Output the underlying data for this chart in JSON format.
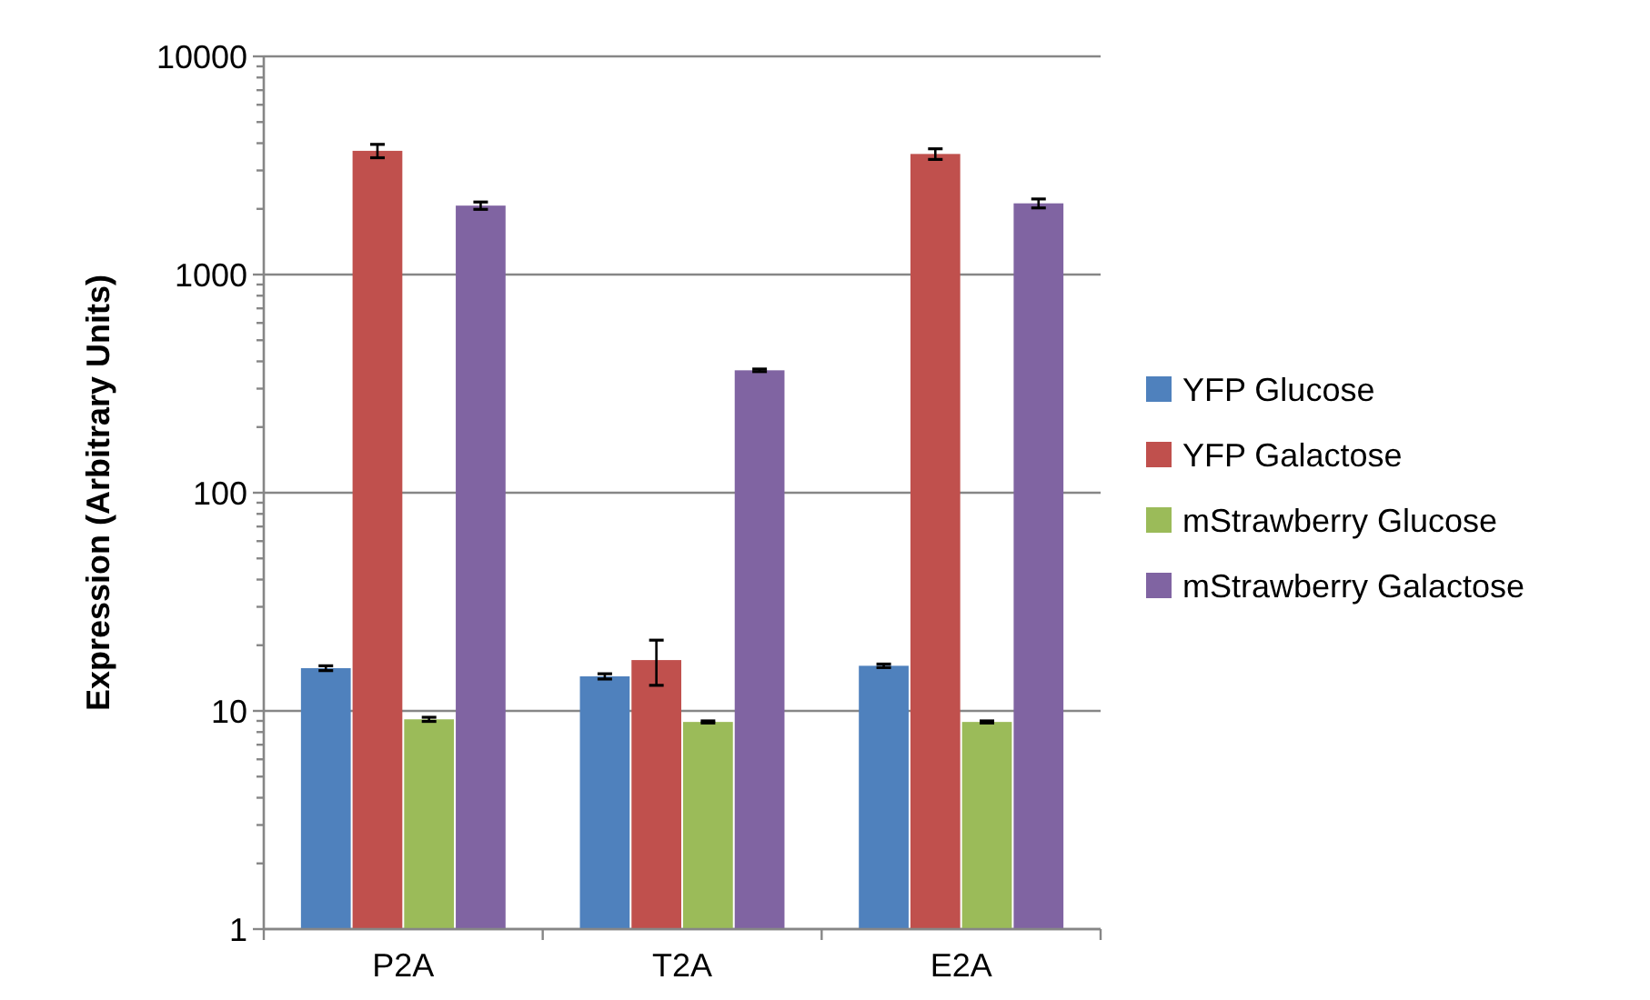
{
  "chart_data": {
    "type": "bar",
    "ylabel": "Expression (Arbitrary Units)",
    "categories": [
      "P2A",
      "T2A",
      "E2A"
    ],
    "log": true,
    "ylim": [
      1,
      10000
    ],
    "yticks": [
      1,
      {
        "value": 2,
        "label": null
      },
      {
        "value": 3,
        "label": null
      },
      {
        "value": 4,
        "label": null
      },
      {
        "value": 5,
        "label": null
      },
      {
        "value": 6,
        "label": null
      },
      {
        "value": 7,
        "label": null
      },
      {
        "value": 8,
        "label": null
      },
      {
        "value": 9,
        "label": null
      },
      10,
      {
        "value": 20,
        "label": null
      },
      {
        "value": 30,
        "label": null
      },
      {
        "value": 40,
        "label": null
      },
      {
        "value": 50,
        "label": null
      },
      {
        "value": 60,
        "label": null
      },
      {
        "value": 70,
        "label": null
      },
      {
        "value": 80,
        "label": null
      },
      {
        "value": 90,
        "label": null
      },
      100,
      {
        "value": 200,
        "label": null
      },
      {
        "value": 300,
        "label": null
      },
      {
        "value": 400,
        "label": null
      },
      {
        "value": 500,
        "label": null
      },
      {
        "value": 600,
        "label": null
      },
      {
        "value": 700,
        "label": null
      },
      {
        "value": 800,
        "label": null
      },
      {
        "value": 900,
        "label": null
      },
      1000,
      {
        "value": 2000,
        "label": null
      },
      {
        "value": 3000,
        "label": null
      },
      {
        "value": 4000,
        "label": null
      },
      {
        "value": 5000,
        "label": null
      },
      {
        "value": 6000,
        "label": null
      },
      {
        "value": 7000,
        "label": null
      },
      {
        "value": 8000,
        "label": null
      },
      {
        "value": 9000,
        "label": null
      },
      10000
    ],
    "grid": "y",
    "legend": "right",
    "series": [
      {
        "name": "YFP Glucose",
        "color": "#4f81bd",
        "values": [
          15.7,
          14.4,
          16.1
        ],
        "errors": [
          0.4,
          0.4,
          0.3
        ]
      },
      {
        "name": "YFP Galactose",
        "color": "#c0504d",
        "values": [
          3690,
          17.1,
          3570
        ],
        "errors": [
          260,
          [
            13.1,
            21.1
          ],
          200
        ]
      },
      {
        "name": "mStrawberry Glucose",
        "color": "#9bbb59",
        "values": [
          9.15,
          8.9,
          8.9
        ],
        "errors": [
          0.2,
          0.1,
          0.1
        ]
      },
      {
        "name": "mStrawberry Galactose",
        "color": "#8064a2",
        "values": [
          2070,
          364,
          2120
        ],
        "errors": [
          80,
          5,
          100
        ]
      }
    ]
  }
}
